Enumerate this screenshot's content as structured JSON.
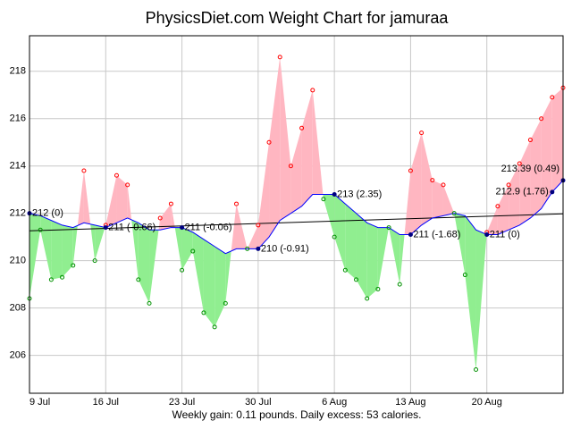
{
  "chart_data": {
    "type": "weight-trend",
    "title": "PhysicsDiet.com Weight Chart for jamuraa",
    "caption": "Weekly gain: 0.11 pounds. Daily excess: 53 calories.",
    "x": [
      "07-09",
      "07-10",
      "07-11",
      "07-12",
      "07-13",
      "07-14",
      "07-15",
      "07-16",
      "07-17",
      "07-18",
      "07-19",
      "07-20",
      "07-21",
      "07-22",
      "07-23",
      "07-24",
      "07-25",
      "07-26",
      "07-27",
      "07-28",
      "07-29",
      "07-30",
      "07-31",
      "08-01",
      "08-02",
      "08-03",
      "08-04",
      "08-05",
      "08-06",
      "08-07",
      "08-08",
      "08-09",
      "08-10",
      "08-11",
      "08-12",
      "08-13",
      "08-14",
      "08-15",
      "08-16",
      "08-17",
      "08-18",
      "08-19",
      "08-20",
      "08-21",
      "08-22",
      "08-23",
      "08-24",
      "08-25",
      "08-26",
      "08-27"
    ],
    "series": [
      {
        "color": "#ff0000",
        "below_color": "#009000",
        "fill": "#ffb6c1",
        "below_fill": "#90ee90",
        "values": [
          208.4,
          211.3,
          209.2,
          209.3,
          209.8,
          213.8,
          210.0,
          211.5,
          213.6,
          213.2,
          209.2,
          208.2,
          211.8,
          212.4,
          209.6,
          210.4,
          207.8,
          207.2,
          208.2,
          212.4,
          210.5,
          211.5,
          215.0,
          218.6,
          214.0,
          215.6,
          217.2,
          212.6,
          211.0,
          209.6,
          209.2,
          208.4,
          208.8,
          211.4,
          209.0,
          213.8,
          215.4,
          213.4,
          213.2,
          212.0,
          209.4,
          205.4,
          211.2,
          212.3,
          213.2,
          214.1,
          215.1,
          216.0,
          216.9,
          217.3
        ]
      },
      {
        "color": "#0000ff",
        "values": [
          212.0,
          211.9,
          211.7,
          211.5,
          211.4,
          211.6,
          211.5,
          211.4,
          211.6,
          211.8,
          211.6,
          211.3,
          211.3,
          211.4,
          211.4,
          211.2,
          210.9,
          210.6,
          210.3,
          210.5,
          210.5,
          210.5,
          211.0,
          211.7,
          212.0,
          212.3,
          212.8,
          212.8,
          212.8,
          212.4,
          212.0,
          211.6,
          211.4,
          211.4,
          211.1,
          211.1,
          211.5,
          211.8,
          211.9,
          212.0,
          211.9,
          211.3,
          211.1,
          211.1,
          211.3,
          211.5,
          211.8,
          212.2,
          212.9,
          213.39
        ],
        "value_labels": [
          "212 (0)",
          null,
          null,
          null,
          null,
          null,
          null,
          "211 (-0.66)",
          null,
          null,
          null,
          null,
          null,
          null,
          "211 (-0.06)",
          null,
          null,
          null,
          null,
          null,
          null,
          "210 (-0.91)",
          null,
          null,
          null,
          null,
          null,
          null,
          "213 (2.35)",
          null,
          null,
          null,
          null,
          null,
          null,
          "211 (-1.68)",
          null,
          null,
          null,
          null,
          null,
          null,
          "211 (0)",
          null,
          null,
          null,
          null,
          null,
          "212.9 (1.76)",
          "213.39 (0.49)"
        ]
      }
    ],
    "regression": {
      "color": "#000000",
      "x": [
        "07-09",
        "08-27"
      ],
      "values": [
        211.26,
        211.98
      ]
    },
    "xlim": [
      "07-09",
      "08-27"
    ],
    "xticks": [
      {
        "value": "07-09",
        "label": "9 Jul"
      },
      {
        "value": "07-16",
        "label": "16 Jul"
      },
      {
        "value": "07-23",
        "label": "23 Jul"
      },
      {
        "value": "07-30",
        "label": "30 Jul"
      },
      {
        "value": "08-06",
        "label": "6 Aug"
      },
      {
        "value": "08-13",
        "label": "13 Aug"
      },
      {
        "value": "08-20",
        "label": "20 Aug"
      }
    ],
    "ylim": [
      204.4,
      219.5
    ],
    "yticks": [
      206,
      208,
      210,
      212,
      214,
      216,
      218
    ],
    "grid": true
  }
}
